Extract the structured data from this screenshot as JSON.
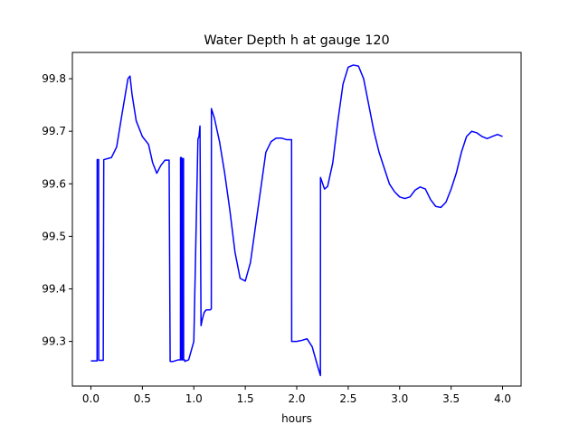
{
  "chart_data": {
    "type": "line",
    "title": "Water Depth h at gauge 120",
    "xlabel": "hours",
    "ylabel": "",
    "xlim": [
      -0.18,
      4.18
    ],
    "ylim": [
      99.215,
      99.85
    ],
    "xticks": [
      0.0,
      0.5,
      1.0,
      1.5,
      2.0,
      2.5,
      3.0,
      3.5,
      4.0
    ],
    "xtick_labels": [
      "0.0",
      "0.5",
      "1.0",
      "1.5",
      "2.0",
      "2.5",
      "3.0",
      "3.5",
      "4.0"
    ],
    "yticks": [
      99.3,
      99.4,
      99.5,
      99.6,
      99.7,
      99.8
    ],
    "ytick_labels": [
      "99.3",
      "99.4",
      "99.5",
      "99.6",
      "99.7",
      "99.8"
    ],
    "grid": false,
    "legend": "none",
    "colors": {
      "line": "#0000ff",
      "frame": "#000000"
    },
    "series": [
      {
        "x": [
          0.0,
          0.06,
          0.061,
          0.075,
          0.076,
          0.11,
          0.12,
          0.125,
          0.2,
          0.25,
          0.3,
          0.36,
          0.38,
          0.4,
          0.44,
          0.5,
          0.56,
          0.6,
          0.64,
          0.68,
          0.72,
          0.76,
          0.77,
          0.8,
          0.85,
          0.87,
          0.871,
          0.88,
          0.881,
          0.89,
          0.891,
          0.9,
          0.901,
          0.91,
          0.912,
          0.95,
          1.0,
          1.04,
          1.05,
          1.06,
          1.07,
          1.08,
          1.1,
          1.12,
          1.14,
          1.16,
          1.17,
          1.171,
          1.2,
          1.25,
          1.3,
          1.35,
          1.4,
          1.45,
          1.5,
          1.55,
          1.6,
          1.65,
          1.7,
          1.75,
          1.8,
          1.85,
          1.9,
          1.95,
          1.951,
          2.0,
          2.05,
          2.1,
          2.15,
          2.2,
          2.23,
          2.231,
          2.27,
          2.3,
          2.35,
          2.4,
          2.45,
          2.5,
          2.55,
          2.6,
          2.65,
          2.7,
          2.75,
          2.8,
          2.85,
          2.9,
          2.95,
          3.0,
          3.05,
          3.1,
          3.15,
          3.2,
          3.25,
          3.3,
          3.35,
          3.4,
          3.45,
          3.5,
          3.55,
          3.6,
          3.65,
          3.7,
          3.75,
          3.8,
          3.85,
          3.9,
          3.95,
          4.0
        ],
        "y": [
          99.263,
          99.263,
          99.646,
          99.646,
          99.264,
          99.264,
          99.264,
          99.646,
          99.65,
          99.67,
          99.73,
          99.8,
          99.805,
          99.77,
          99.72,
          99.69,
          99.675,
          99.64,
          99.62,
          99.635,
          99.645,
          99.645,
          99.262,
          99.262,
          99.265,
          99.265,
          99.65,
          99.65,
          99.265,
          99.265,
          99.648,
          99.648,
          99.265,
          99.265,
          99.262,
          99.265,
          99.3,
          99.685,
          99.69,
          99.71,
          99.33,
          99.34,
          99.355,
          99.36,
          99.36,
          99.36,
          99.362,
          99.743,
          99.725,
          99.68,
          99.62,
          99.55,
          99.47,
          99.42,
          99.415,
          99.45,
          99.52,
          99.59,
          99.66,
          99.68,
          99.687,
          99.687,
          99.684,
          99.684,
          99.3,
          99.3,
          99.302,
          99.305,
          99.29,
          99.255,
          99.235,
          99.612,
          99.59,
          99.595,
          99.64,
          99.72,
          99.79,
          99.822,
          99.826,
          99.824,
          99.8,
          99.75,
          99.7,
          99.66,
          99.63,
          99.6,
          99.585,
          99.575,
          99.572,
          99.575,
          99.588,
          99.594,
          99.59,
          99.57,
          99.557,
          99.555,
          99.565,
          99.59,
          99.62,
          99.66,
          99.69,
          99.7,
          99.697,
          99.69,
          99.686,
          99.69,
          99.694,
          99.69
        ]
      }
    ]
  }
}
